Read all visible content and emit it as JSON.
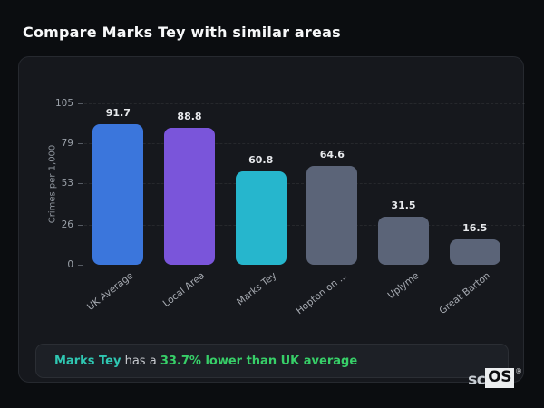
{
  "page": {
    "title": "Compare Marks Tey with similar areas"
  },
  "chart_data": {
    "type": "bar",
    "title": "Compare Marks Tey with similar areas",
    "xlabel": "",
    "ylabel": "Crimes per 1,000",
    "ylim": [
      0,
      105
    ],
    "yticks": [
      0,
      26,
      53,
      79,
      105
    ],
    "grid": "horizontal-dashed",
    "legend": "none",
    "categories": [
      "UK Average",
      "Local Area",
      "Marks Tey",
      "Hopton on ...",
      "Uplyme",
      "Great Barton"
    ],
    "values": [
      91.7,
      88.8,
      60.8,
      64.6,
      31.5,
      16.5
    ],
    "bar_colors": [
      "#3b76dc",
      "#7a55da",
      "#26b6cd",
      "#5b6478",
      "#5b6478",
      "#5b6478"
    ],
    "value_label_color": "#e7e9ec"
  },
  "summary": {
    "area_name": "Marks Tey",
    "connector_text": " has a ",
    "stat_text": "33.7% lower than UK average",
    "area_color": "#2fc7b2",
    "stat_color": "#37cf68"
  },
  "branding": {
    "prefix": "sc",
    "suffix": "OS",
    "registered_mark": "®"
  }
}
